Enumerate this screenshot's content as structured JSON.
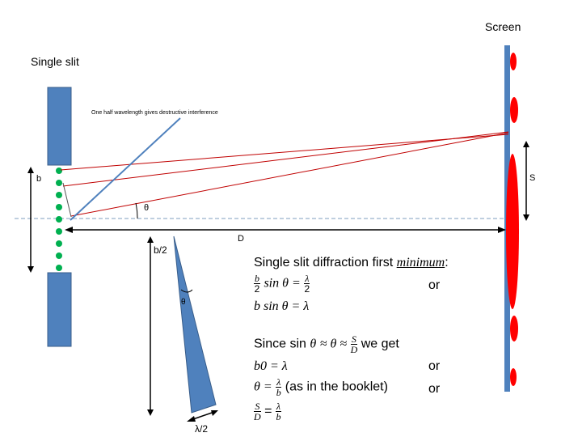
{
  "labels": {
    "screen": "Screen",
    "single_slit": "Single slit",
    "note": "One half wavelength gives destructive interference",
    "b": "b",
    "s": "S",
    "theta": "θ",
    "d": "D",
    "b_half": "b/2",
    "theta_small": "θ",
    "lambda_half": "λ/2"
  },
  "text": {
    "heading_pre": "Single slit diffraction first ",
    "heading_em": "minimum",
    "heading_post": ":",
    "or": "or",
    "since_pre": "Since sin",
    "since_mid": "≈ θ ≈",
    "since_post": "we get",
    "booklet": "(as in the booklet)",
    "b_sin": "b sin θ = λ",
    "b0": "b0 = λ",
    "theta_eq": "θ =",
    "sin_theta_eq": "sin θ =",
    "eq_sign": "=",
    "frac_b": "b",
    "frac_2": "2",
    "frac_lambda": "λ",
    "frac_s": "S",
    "frac_d": "D"
  },
  "colors": {
    "slit_fill": "#4f81bd",
    "screen_fill": "#4f81bd",
    "fringe": "#ff0000",
    "dots": "#00b050",
    "rays": "#c00000",
    "axis": "#7f9fbf"
  }
}
